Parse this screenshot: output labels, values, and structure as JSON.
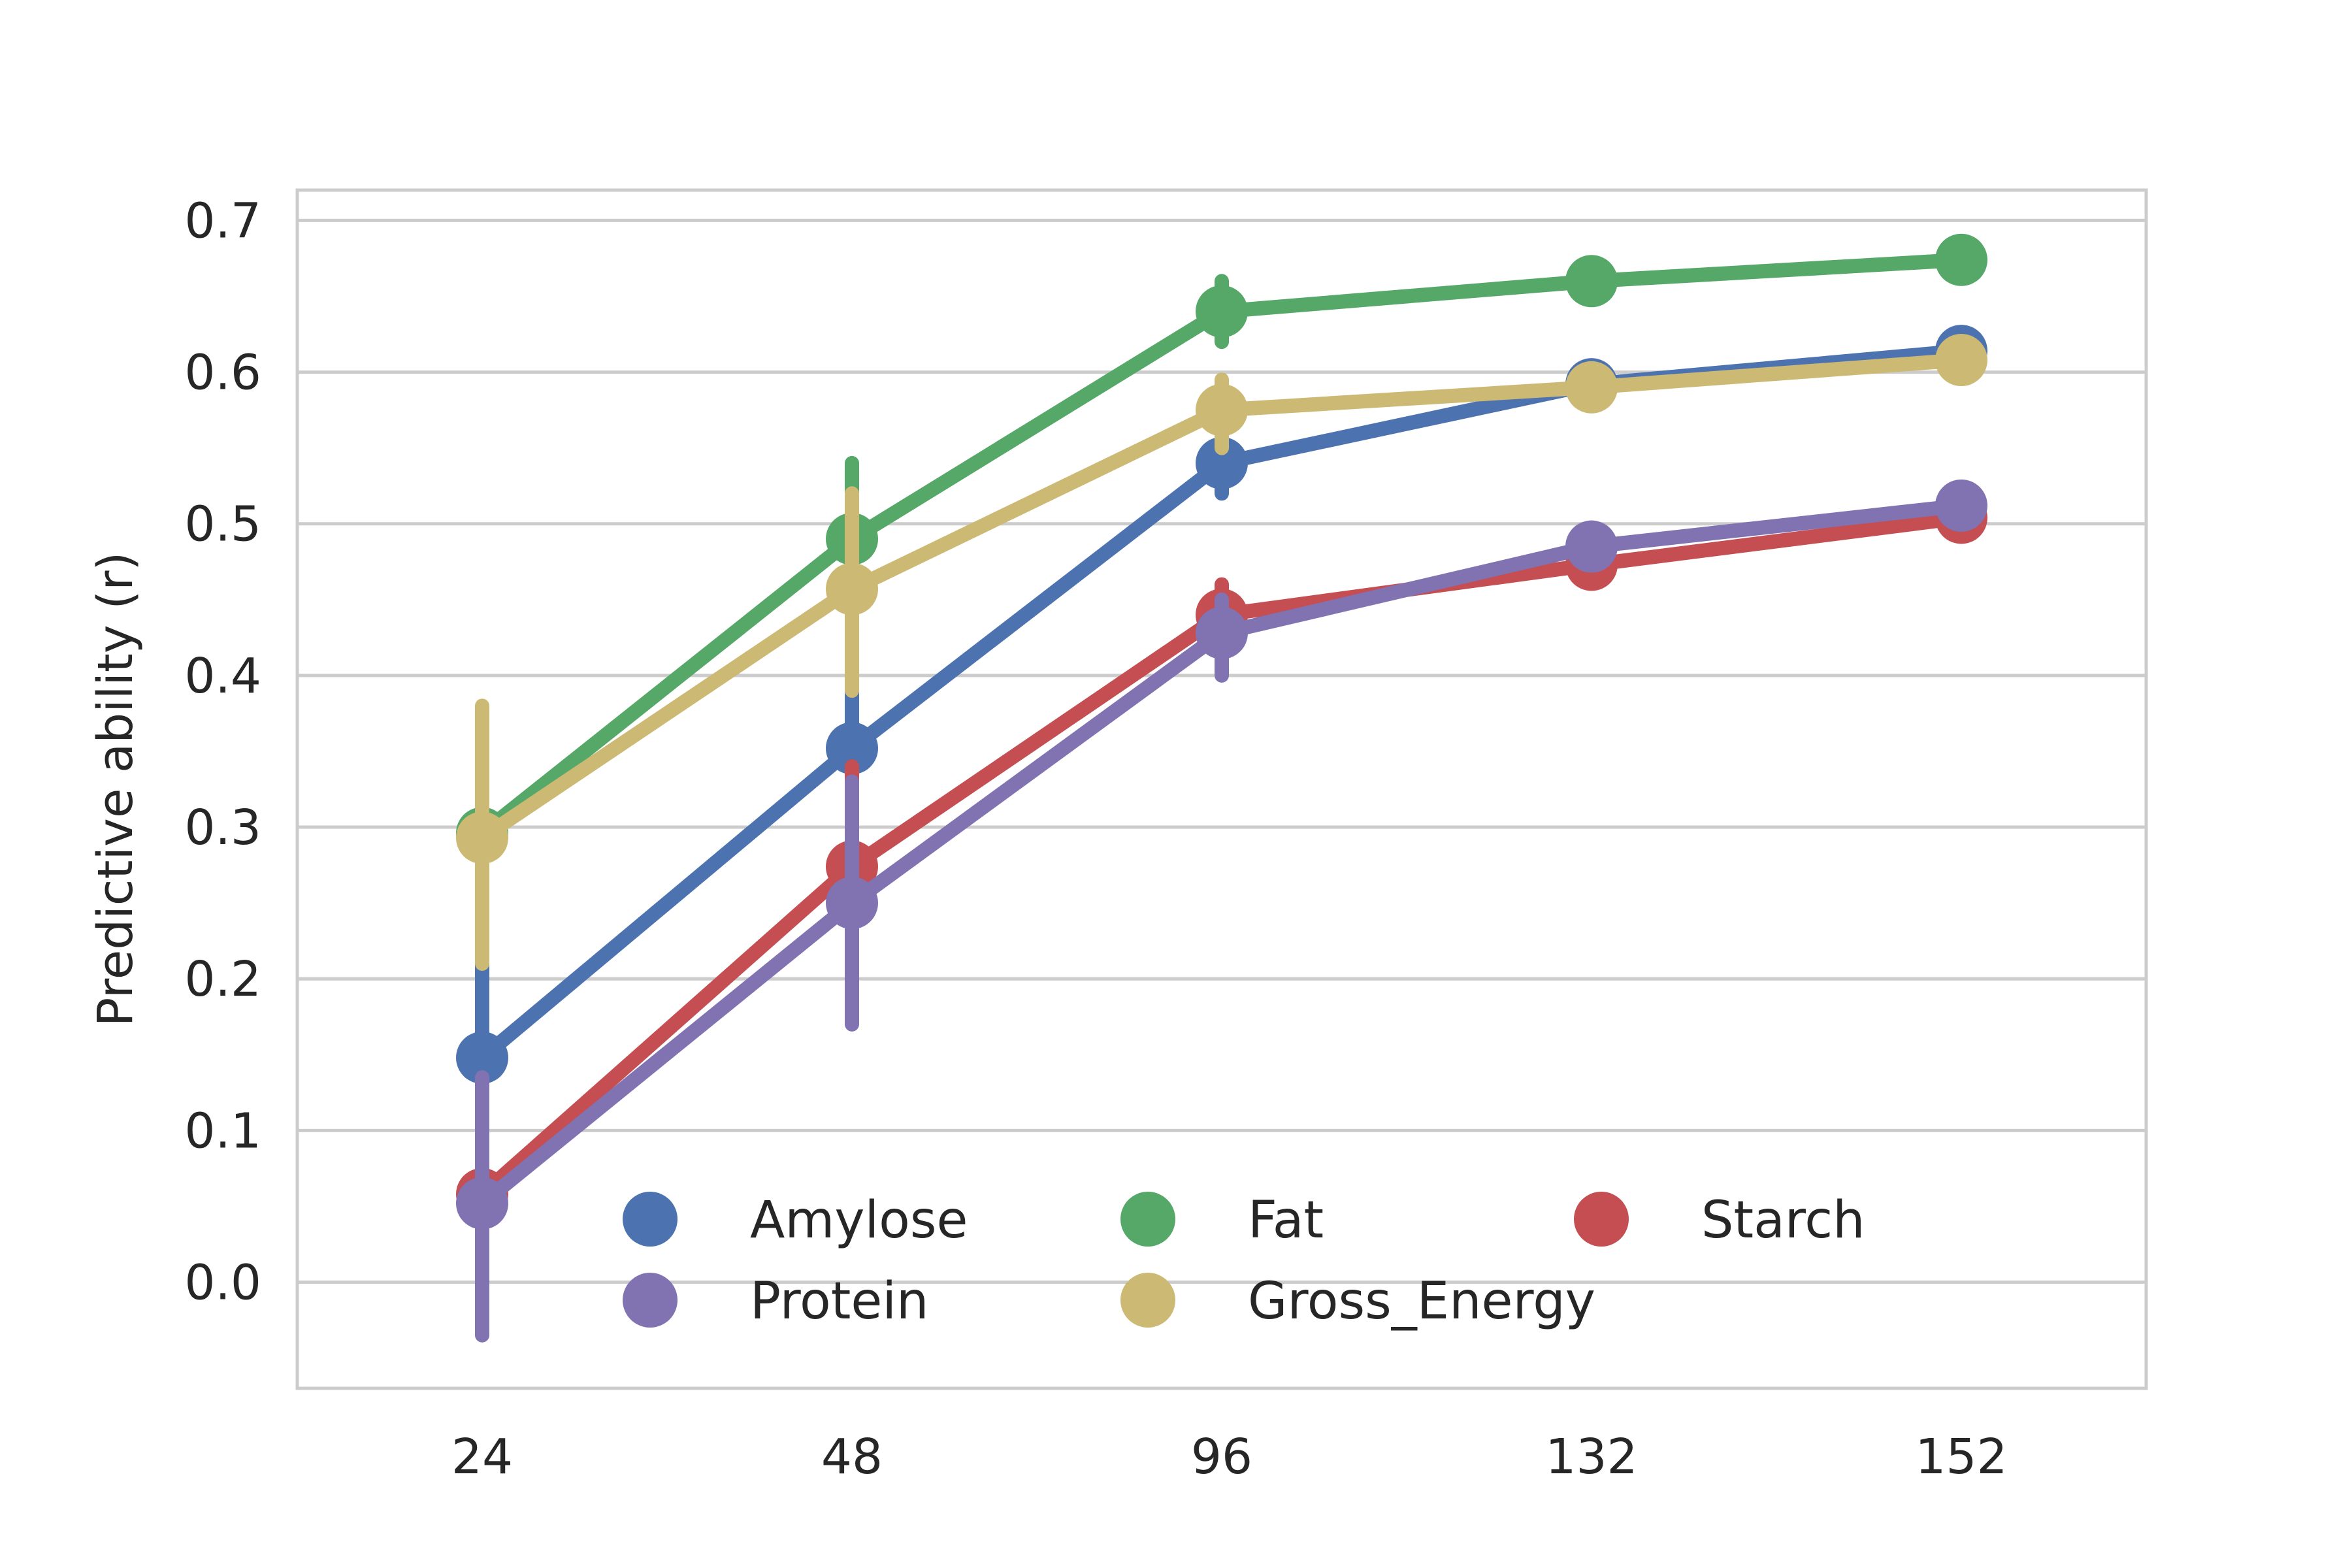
{
  "chart_data": {
    "type": "line",
    "title": "",
    "xlabel": "",
    "ylabel": "Predictive ability (r)",
    "categories": [
      "24",
      "48",
      "96",
      "132",
      "152"
    ],
    "ylim": [
      -0.07,
      0.72
    ],
    "yticks": [
      "0.0",
      "0.1",
      "0.2",
      "0.3",
      "0.4",
      "0.5",
      "0.6",
      "0.7"
    ],
    "grid": "horizontal",
    "legend_position": "lower-right",
    "legend_columns": 3,
    "series": [
      {
        "name": "Amylose",
        "color": "#4c72b0",
        "values": [
          0.148,
          0.352,
          0.54,
          0.592,
          0.614
        ],
        "errors": [
          [
            0.1,
            0.23
          ],
          [
            0.29,
            0.43
          ],
          [
            0.52,
            0.56
          ],
          [
            0.585,
            0.6
          ],
          [
            0.61,
            0.62
          ]
        ]
      },
      {
        "name": "Fat",
        "color": "#55a868",
        "values": [
          0.296,
          0.49,
          0.64,
          0.66,
          0.674
        ],
        "errors": [
          [
            0.22,
            0.37
          ],
          [
            0.44,
            0.54
          ],
          [
            0.62,
            0.66
          ],
          [
            0.655,
            0.665
          ],
          [
            0.67,
            0.678
          ]
        ]
      },
      {
        "name": "Starch",
        "color": "#c44e52",
        "values": [
          0.058,
          0.274,
          0.44,
          0.473,
          0.504
        ],
        "errors": [
          [
            -0.01,
            0.12
          ],
          [
            0.21,
            0.34
          ],
          [
            0.42,
            0.46
          ],
          [
            0.468,
            0.478
          ],
          [
            0.5,
            0.508
          ]
        ]
      },
      {
        "name": "Protein",
        "color": "#8172b2",
        "values": [
          0.052,
          0.25,
          0.428,
          0.485,
          0.512
        ],
        "errors": [
          [
            -0.035,
            0.135
          ],
          [
            0.17,
            0.33
          ],
          [
            0.4,
            0.45
          ],
          [
            0.48,
            0.49
          ],
          [
            0.508,
            0.516
          ]
        ]
      },
      {
        "name": "Gross_Energy",
        "color": "#ccb974",
        "values": [
          0.293,
          0.457,
          0.575,
          0.59,
          0.608
        ],
        "errors": [
          [
            0.21,
            0.38
          ],
          [
            0.39,
            0.52
          ],
          [
            0.55,
            0.595
          ],
          [
            0.585,
            0.595
          ],
          [
            0.604,
            0.612
          ]
        ]
      }
    ]
  }
}
